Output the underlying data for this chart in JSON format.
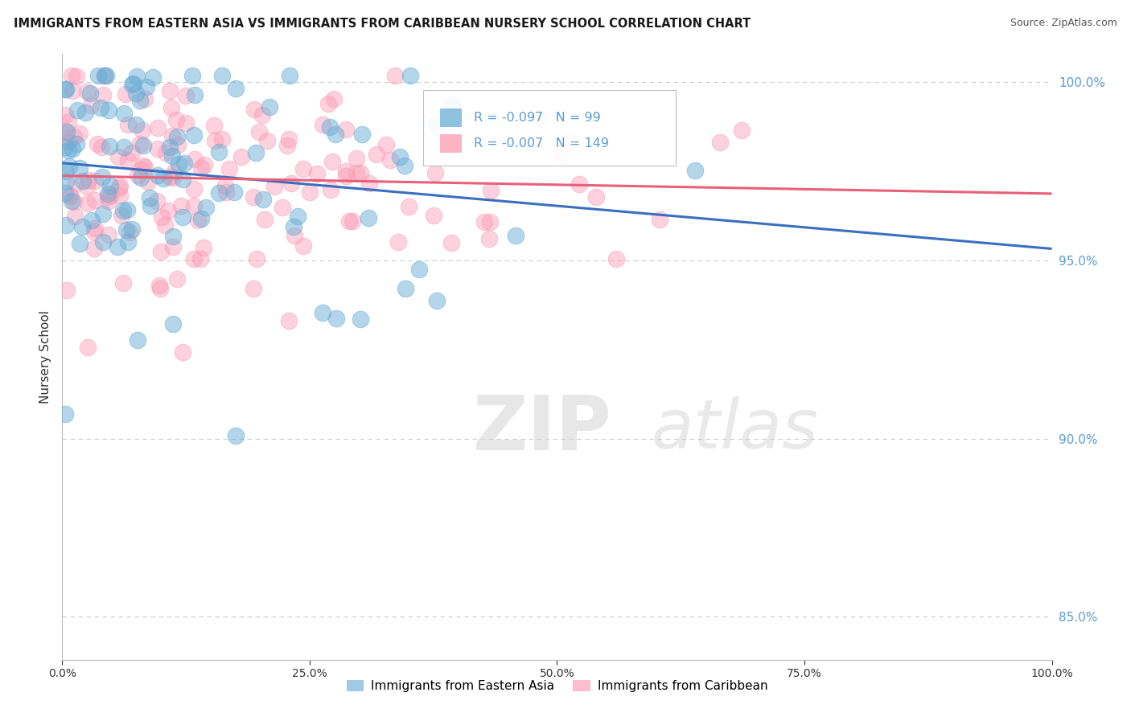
{
  "title": "IMMIGRANTS FROM EASTERN ASIA VS IMMIGRANTS FROM CARIBBEAN NURSERY SCHOOL CORRELATION CHART",
  "source": "Source: ZipAtlas.com",
  "ylabel": "Nursery School",
  "legend_label1": "Immigrants from Eastern Asia",
  "legend_label2": "Immigrants from Caribbean",
  "R1": -0.097,
  "N1": 99,
  "R2": -0.007,
  "N2": 149,
  "color1": "#6baed6",
  "color2": "#fb9ab4",
  "trendline_color1": "#3a6fbf",
  "trendline_color2": "#e8607a",
  "xlim": [
    0.0,
    1.0
  ],
  "ylim": [
    0.838,
    1.008
  ],
  "yticks": [
    0.85,
    0.9,
    0.95,
    1.0
  ],
  "background_color": "#ffffff",
  "grid_color": "#cccccc",
  "watermark": "ZIPatlas",
  "right_axis_color": "#5b9bd5"
}
